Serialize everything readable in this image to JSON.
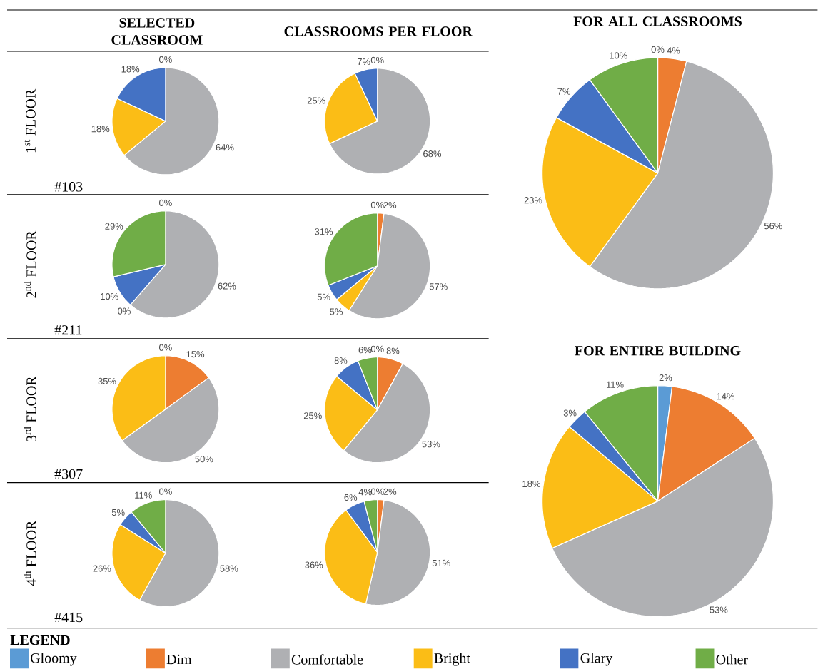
{
  "chart_data": [
    {
      "type": "pie",
      "title": "SELECTED CLASSROOM",
      "ylabel": "1$^{st}$ FLOOR",
      "annotations": [
        "#103"
      ],
      "categories": [
        null,
        null,
        null,
        null,
        null,
        null
      ],
      "values": [
        0,
        0,
        64,
        18,
        18,
        0
      ],
      "colors": [
        "#5b9bd5",
        "#ed7d31",
        "#afb0b3",
        "#fbbd16",
        "#4472c4",
        "#70ad47"
      ],
      "value_labels": [
        null,
        "0%",
        "64%",
        "18%",
        "18%",
        null
      ]
    },
    {
      "type": "pie",
      "title": "CLASSROOMS PER FLOOR",
      "categories": [
        null,
        null,
        null,
        null,
        null,
        null
      ],
      "values": [
        0,
        0,
        68,
        25,
        7,
        0
      ],
      "colors": [
        "#5b9bd5",
        "#ed7d31",
        "#afb0b3",
        "#fbbd16",
        "#4472c4",
        "#70ad47"
      ],
      "value_labels": [
        null,
        "0%",
        "68%",
        "25%",
        "7%",
        null
      ]
    },
    {
      "type": "pie",
      "title": "FOR ALL CLASSROOMS",
      "categories": [
        null,
        null,
        null,
        null,
        null,
        null
      ],
      "values": [
        0,
        4,
        56,
        23,
        7,
        10
      ],
      "colors": [
        "#5b9bd5",
        "#ed7d31",
        "#afb0b3",
        "#fbbd16",
        "#4472c4",
        "#70ad47"
      ],
      "value_labels": [
        "0%",
        "4%",
        "56%",
        "23%",
        "7%",
        "10%"
      ]
    },
    {
      "type": "pie",
      "ylabel": "2$^{nd}$ FLOOR",
      "annotations": [
        "#211"
      ],
      "categories": [
        null,
        null,
        null,
        null,
        null,
        null
      ],
      "values": [
        0,
        0,
        62,
        0,
        10,
        29
      ],
      "colors": [
        "#5b9bd5",
        "#ed7d31",
        "#afb0b3",
        "#fbbd16",
        "#4472c4",
        "#70ad47"
      ],
      "value_labels": [
        null,
        "0%",
        "62%",
        "0%",
        "10%",
        "29%"
      ]
    },
    {
      "type": "pie",
      "categories": [
        null,
        null,
        null,
        null,
        null,
        null
      ],
      "values": [
        0,
        2,
        57,
        5,
        5,
        31
      ],
      "colors": [
        "#5b9bd5",
        "#ed7d31",
        "#afb0b3",
        "#fbbd16",
        "#4472c4",
        "#70ad47"
      ],
      "value_labels": [
        "0%",
        "2%",
        "57%",
        "5%",
        "5%",
        "31%"
      ]
    },
    {
      "type": "pie",
      "ylabel": "3$^{rd}$ FLOOR",
      "annotations": [
        "#307"
      ],
      "categories": [
        null,
        null,
        null,
        null,
        null,
        null
      ],
      "values": [
        0,
        15,
        50,
        35,
        0,
        0
      ],
      "colors": [
        "#5b9bd5",
        "#ed7d31",
        "#afb0b3",
        "#fbbd16",
        "#4472c4",
        "#70ad47"
      ],
      "value_labels": [
        "0%",
        "15%",
        "50%",
        "35%",
        null,
        null
      ]
    },
    {
      "type": "pie",
      "categories": [
        null,
        null,
        null,
        null,
        null,
        null
      ],
      "values": [
        0,
        8,
        53,
        25,
        8,
        6
      ],
      "colors": [
        "#5b9bd5",
        "#ed7d31",
        "#afb0b3",
        "#fbbd16",
        "#4472c4",
        "#70ad47"
      ],
      "value_labels": [
        "0%",
        "8%",
        "53%",
        "25%",
        "8%",
        "6%"
      ]
    },
    {
      "type": "pie",
      "title": "FOR ENTIRE BUILDING",
      "legend": "bottom",
      "legend_title": "LEGEND",
      "categories": [
        "Gloomy",
        "Dim",
        "Comfortable",
        "Bright",
        "Glary",
        "Other"
      ],
      "values": [
        2,
        14,
        53,
        18,
        3,
        11
      ],
      "colors": [
        "#5b9bd5",
        "#ed7d31",
        "#afb0b3",
        "#fbbd16",
        "#4472c4",
        "#70ad47"
      ],
      "value_labels": [
        "2%",
        "14%",
        "53%",
        "18%",
        "3%",
        "11%"
      ]
    },
    {
      "type": "pie",
      "ylabel": "4$^{th}$ FLOOR",
      "annotations": [
        "#415"
      ],
      "categories": [
        null,
        null,
        null,
        null,
        null,
        null
      ],
      "values": [
        0,
        0,
        58,
        26,
        5,
        11
      ],
      "colors": [
        "#5b9bd5",
        "#ed7d31",
        "#afb0b3",
        "#fbbd16",
        "#4472c4",
        "#70ad47"
      ],
      "value_labels": [
        null,
        "0%",
        "58%",
        "26%",
        "5%",
        "11%"
      ]
    },
    {
      "type": "pie",
      "categories": [
        null,
        null,
        null,
        null,
        null,
        null
      ],
      "values": [
        0,
        2,
        51,
        36,
        6,
        4
      ],
      "colors": [
        "#5b9bd5",
        "#ed7d31",
        "#afb0b3",
        "#fbbd16",
        "#4472c4",
        "#70ad47"
      ],
      "value_labels": [
        "0%",
        "2%",
        "51%",
        "36%",
        "6%",
        "4%"
      ]
    }
  ]
}
